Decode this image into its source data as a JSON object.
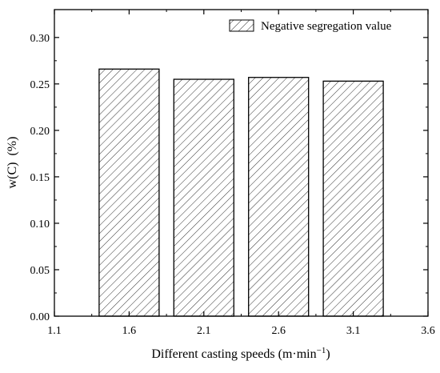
{
  "chart_data": {
    "type": "bar",
    "categories": [
      "1.6",
      "2.1",
      "2.6",
      "3.1"
    ],
    "x": [
      1.6,
      2.1,
      2.6,
      3.1
    ],
    "series": [
      {
        "name": "Negative segregation value",
        "values": [
          0.266,
          0.255,
          0.257,
          0.253
        ]
      }
    ],
    "xlabel_main": "Different casting speeds (m·min",
    "xlabel_sup": "−1",
    "xlabel_end": ")",
    "ylabel": "w(C) (%)",
    "xlim": [
      1.1,
      3.6
    ],
    "ylim": [
      0,
      0.33
    ],
    "x_ticks": [
      "1.1",
      "1.6",
      "2.1",
      "2.6",
      "3.1",
      "3.6"
    ],
    "y_ticks": [
      "0.00",
      "0.05",
      "0.10",
      "0.15",
      "0.20",
      "0.25",
      "0.30"
    ],
    "bar_fill": "hatched",
    "grid": false,
    "legend_position": "top-right",
    "colors": {
      "bar_stroke": "#000000",
      "hatch": "#333333",
      "background": "#ffffff"
    }
  }
}
